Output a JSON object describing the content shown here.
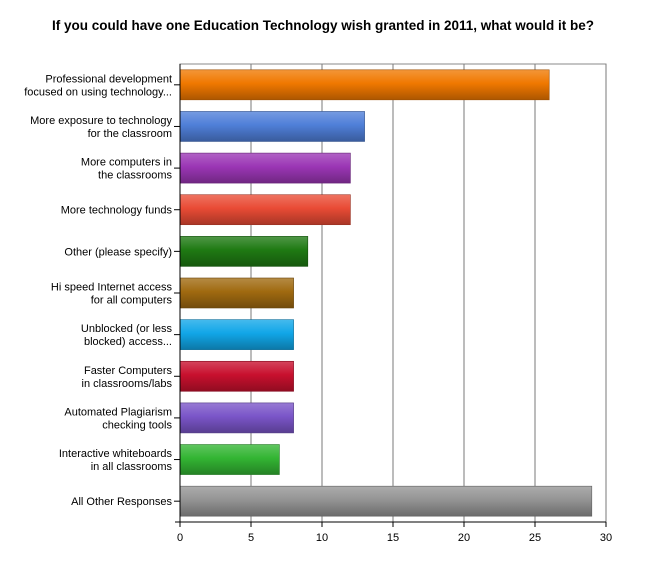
{
  "chart_data": {
    "type": "bar",
    "orientation": "horizontal",
    "title": "If you could have one Education Technology wish granted in 2011, what would it be?",
    "xlabel": "",
    "ylabel": "",
    "xlim": [
      0,
      30
    ],
    "x_ticks": [
      0,
      5,
      10,
      15,
      20,
      25,
      30
    ],
    "grid": true,
    "categories": [
      [
        "Professional development",
        "focused on using technology..."
      ],
      [
        "More exposure to technology",
        "for the classroom"
      ],
      [
        "More computers in",
        "the classrooms"
      ],
      [
        "More technology funds"
      ],
      [
        "Other (please specify)"
      ],
      [
        "Hi speed Internet access",
        "for all computers"
      ],
      [
        "Unblocked (or less",
        "blocked) access..."
      ],
      [
        "Faster Computers",
        "in classrooms/labs"
      ],
      [
        "Automated Plagiarism",
        "checking tools"
      ],
      [
        "Interactive whiteboards",
        "in all classrooms"
      ],
      [
        "All Other Responses"
      ]
    ],
    "values": [
      26,
      13,
      12,
      12,
      9,
      8,
      8,
      8,
      8,
      7,
      29
    ],
    "colors": [
      "#f07800",
      "#4f7fd8",
      "#9b36b5",
      "#e94b35",
      "#1f7a13",
      "#a06a10",
      "#11a6e8",
      "#c8102e",
      "#7a55c8",
      "#33b533",
      "#949494"
    ]
  }
}
